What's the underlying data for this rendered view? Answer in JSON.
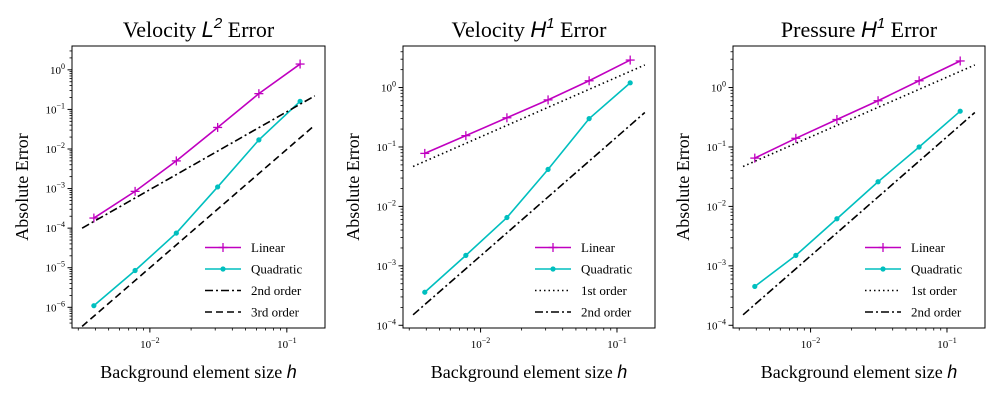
{
  "chart_data": [
    {
      "type": "line",
      "title": {
        "prefix": "Velocity ",
        "symbol": "L",
        "sup": "2",
        "suffix": " Error"
      },
      "xlabel": {
        "text": "Background element size ",
        "symbol": "h"
      },
      "ylabel": "Absolute Error",
      "xscale": "log",
      "yscale": "log",
      "xlim": [
        0.0027,
        0.19
      ],
      "ylim": [
        3e-07,
        4.0
      ],
      "xticks": [
        {
          "value": 0.01,
          "base": "10",
          "exp": "−2"
        },
        {
          "value": 0.1,
          "base": "10",
          "exp": "−1"
        }
      ],
      "yticks": [
        {
          "value": 1e-06,
          "base": "10",
          "exp": "−6"
        },
        {
          "value": 1e-05,
          "base": "10",
          "exp": "−5"
        },
        {
          "value": 0.0001,
          "base": "10",
          "exp": "−4"
        },
        {
          "value": 0.001,
          "base": "10",
          "exp": "−3"
        },
        {
          "value": 0.01,
          "base": "10",
          "exp": "−2"
        },
        {
          "value": 0.1,
          "base": "10",
          "exp": "−1"
        },
        {
          "value": 1,
          "base": "10",
          "exp": "0"
        }
      ],
      "legend_position": "lower-right",
      "series": [
        {
          "name": "Linear",
          "color": "#c000c0",
          "dash": "solid",
          "marker": "plus",
          "x": [
            0.0039,
            0.0078,
            0.0156,
            0.03125,
            0.0625,
            0.125
          ],
          "y": [
            0.00018,
            0.00085,
            0.005,
            0.035,
            0.25,
            1.4
          ]
        },
        {
          "name": "Quadratic",
          "color": "#00bfbf",
          "dash": "solid",
          "marker": "dot",
          "x": [
            0.0039,
            0.0078,
            0.0156,
            0.03125,
            0.0625,
            0.125
          ],
          "y": [
            1.1e-06,
            8.5e-06,
            7.5e-05,
            0.0011,
            0.017,
            0.16
          ]
        },
        {
          "name": "2nd order",
          "color": "#000000",
          "dash": "dashdot",
          "marker": "none",
          "x": [
            0.0032,
            0.16
          ],
          "y": [
            0.0001,
            0.22
          ]
        },
        {
          "name": "3rd order",
          "color": "#000000",
          "dash": "dashed",
          "marker": "none",
          "x": [
            0.0032,
            0.16
          ],
          "y": [
            3.3e-07,
            0.04
          ]
        }
      ]
    },
    {
      "type": "line",
      "title": {
        "prefix": "Velocity ",
        "symbol": "H",
        "sup": "1",
        "suffix": " Error"
      },
      "xlabel": {
        "text": "Background element size ",
        "symbol": "h"
      },
      "ylabel": "Absolute Error",
      "xscale": "log",
      "yscale": "log",
      "xlim": [
        0.0027,
        0.19
      ],
      "ylim": [
        9e-05,
        5.0
      ],
      "xticks": [
        {
          "value": 0.01,
          "base": "10",
          "exp": "−2"
        },
        {
          "value": 0.1,
          "base": "10",
          "exp": "−1"
        }
      ],
      "yticks": [
        {
          "value": 0.0001,
          "base": "10",
          "exp": "−4"
        },
        {
          "value": 0.001,
          "base": "10",
          "exp": "−3"
        },
        {
          "value": 0.01,
          "base": "10",
          "exp": "−2"
        },
        {
          "value": 0.1,
          "base": "10",
          "exp": "−1"
        },
        {
          "value": 1,
          "base": "10",
          "exp": "0"
        }
      ],
      "legend_position": "lower-right",
      "series": [
        {
          "name": "Linear",
          "color": "#c000c0",
          "dash": "solid",
          "marker": "plus",
          "x": [
            0.0039,
            0.0078,
            0.0156,
            0.03125,
            0.0625,
            0.125
          ],
          "y": [
            0.078,
            0.155,
            0.31,
            0.62,
            1.3,
            2.9
          ]
        },
        {
          "name": "Quadratic",
          "color": "#00bfbf",
          "dash": "solid",
          "marker": "dot",
          "x": [
            0.0039,
            0.0078,
            0.0156,
            0.03125,
            0.0625,
            0.125
          ],
          "y": [
            0.00036,
            0.0015,
            0.0065,
            0.042,
            0.3,
            1.2
          ]
        },
        {
          "name": "1st order",
          "color": "#000000",
          "dash": "dotted",
          "marker": "none",
          "x": [
            0.0032,
            0.16
          ],
          "y": [
            0.047,
            2.4
          ]
        },
        {
          "name": "2nd order",
          "color": "#000000",
          "dash": "dashdot",
          "marker": "none",
          "x": [
            0.0032,
            0.16
          ],
          "y": [
            0.00015,
            0.38
          ]
        }
      ]
    },
    {
      "type": "line",
      "title": {
        "prefix": "Pressure ",
        "symbol": "H",
        "sup": "1",
        "suffix": " Error"
      },
      "xlabel": {
        "text": "Background element size ",
        "symbol": "h"
      },
      "ylabel": "Absolute Error",
      "xscale": "log",
      "yscale": "log",
      "xlim": [
        0.0027,
        0.19
      ],
      "ylim": [
        9e-05,
        5.0
      ],
      "xticks": [
        {
          "value": 0.01,
          "base": "10",
          "exp": "−2"
        },
        {
          "value": 0.1,
          "base": "10",
          "exp": "−1"
        }
      ],
      "yticks": [
        {
          "value": 0.0001,
          "base": "10",
          "exp": "−4"
        },
        {
          "value": 0.001,
          "base": "10",
          "exp": "−3"
        },
        {
          "value": 0.01,
          "base": "10",
          "exp": "−2"
        },
        {
          "value": 0.1,
          "base": "10",
          "exp": "−1"
        },
        {
          "value": 1,
          "base": "10",
          "exp": "0"
        }
      ],
      "legend_position": "lower-right",
      "series": [
        {
          "name": "Linear",
          "color": "#c000c0",
          "dash": "solid",
          "marker": "plus",
          "x": [
            0.0039,
            0.0078,
            0.0156,
            0.03125,
            0.0625,
            0.125
          ],
          "y": [
            0.065,
            0.14,
            0.29,
            0.6,
            1.3,
            2.8
          ]
        },
        {
          "name": "Quadratic",
          "color": "#00bfbf",
          "dash": "solid",
          "marker": "dot",
          "x": [
            0.0039,
            0.0078,
            0.0156,
            0.03125,
            0.0625,
            0.125
          ],
          "y": [
            0.00045,
            0.0015,
            0.0062,
            0.026,
            0.1,
            0.4
          ]
        },
        {
          "name": "1st order",
          "color": "#000000",
          "dash": "dotted",
          "marker": "none",
          "x": [
            0.0032,
            0.16
          ],
          "y": [
            0.047,
            2.4
          ]
        },
        {
          "name": "2nd order",
          "color": "#000000",
          "dash": "dashdot",
          "marker": "none",
          "x": [
            0.0032,
            0.16
          ],
          "y": [
            0.00015,
            0.38
          ]
        }
      ]
    }
  ]
}
